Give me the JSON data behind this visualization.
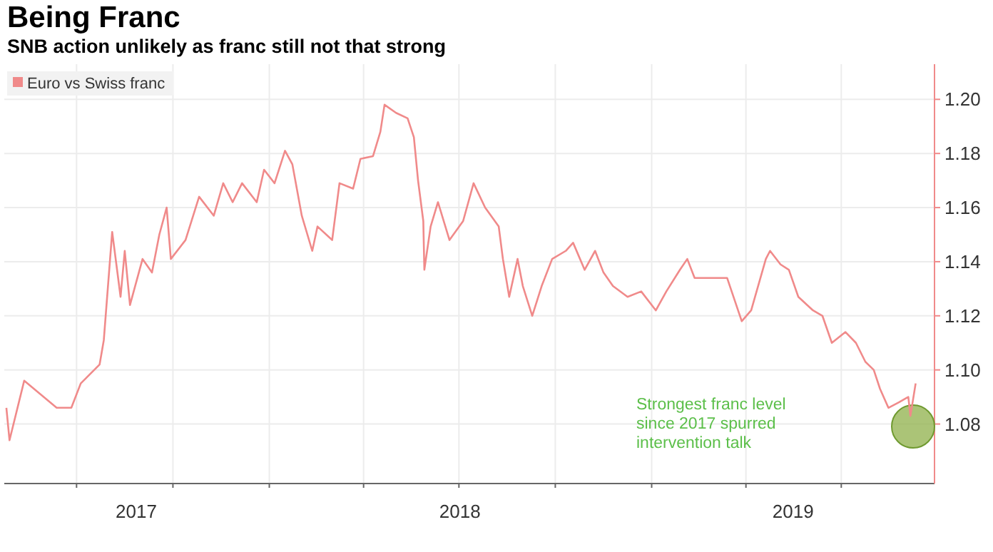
{
  "chart_data": {
    "type": "line",
    "title": "Being Franc",
    "subtitle": "SNB action unlikely as franc still not that strong",
    "x": [
      "2017-04-25",
      "2017-04-28",
      "2017-05-12",
      "2017-06-12",
      "2017-06-26",
      "2017-07-05",
      "2017-07-23",
      "2017-07-27",
      "2017-08-04",
      "2017-08-12",
      "2017-08-16",
      "2017-08-21",
      "2017-09-02",
      "2017-09-11",
      "2017-09-18",
      "2017-09-25",
      "2017-09-29",
      "2017-10-13",
      "2017-10-26",
      "2017-11-09",
      "2017-11-18",
      "2017-11-27",
      "2017-12-06",
      "2017-12-20",
      "2017-12-27",
      "2018-01-06",
      "2018-01-16",
      "2018-01-23",
      "2018-02-01",
      "2018-02-11",
      "2018-02-16",
      "2018-03-02",
      "2018-03-09",
      "2018-03-22",
      "2018-03-29",
      "2018-04-10",
      "2018-04-17",
      "2018-04-21",
      "2018-05-02",
      "2018-05-13",
      "2018-05-19",
      "2018-05-23",
      "2018-05-28",
      "2018-05-29",
      "2018-06-04",
      "2018-06-11",
      "2018-06-22",
      "2018-07-05",
      "2018-07-15",
      "2018-07-26",
      "2018-08-08",
      "2018-08-12",
      "2018-08-18",
      "2018-08-26",
      "2018-08-31",
      "2018-09-09",
      "2018-09-18",
      "2018-09-28",
      "2018-10-11",
      "2018-10-18",
      "2018-10-29",
      "2018-11-08",
      "2018-11-16",
      "2018-11-25",
      "2018-12-09",
      "2018-12-22",
      "2019-01-05",
      "2019-01-15",
      "2019-01-28",
      "2019-02-04",
      "2019-02-11",
      "2019-03-01",
      "2019-03-14",
      "2019-03-28",
      "2019-04-06",
      "2019-04-20",
      "2019-04-24",
      "2019-05-04",
      "2019-05-12",
      "2019-05-21",
      "2019-06-04",
      "2019-06-13",
      "2019-06-22",
      "2019-07-05",
      "2019-07-15",
      "2019-07-24",
      "2019-08-01",
      "2019-08-07",
      "2019-08-15",
      "2019-08-25",
      "2019-09-03",
      "2019-09-05",
      "2019-09-10"
    ],
    "series": [
      {
        "name": "Euro vs Swiss franc",
        "color": "#f08a8a",
        "values": [
          1.086,
          1.074,
          1.096,
          1.086,
          1.086,
          1.095,
          1.102,
          1.111,
          1.151,
          1.127,
          1.144,
          1.124,
          1.141,
          1.136,
          1.15,
          1.16,
          1.141,
          1.148,
          1.164,
          1.157,
          1.169,
          1.162,
          1.169,
          1.162,
          1.174,
          1.169,
          1.181,
          1.176,
          1.157,
          1.144,
          1.153,
          1.148,
          1.169,
          1.167,
          1.178,
          1.179,
          1.188,
          1.198,
          1.195,
          1.193,
          1.186,
          1.17,
          1.155,
          1.137,
          1.153,
          1.162,
          1.148,
          1.155,
          1.169,
          1.16,
          1.153,
          1.141,
          1.127,
          1.141,
          1.131,
          1.12,
          1.131,
          1.141,
          1.144,
          1.147,
          1.137,
          1.144,
          1.136,
          1.131,
          1.127,
          1.129,
          1.122,
          1.129,
          1.137,
          1.141,
          1.134,
          1.134,
          1.134,
          1.118,
          1.122,
          1.141,
          1.144,
          1.139,
          1.137,
          1.127,
          1.122,
          1.12,
          1.11,
          1.114,
          1.11,
          1.103,
          1.1,
          1.093,
          1.086,
          1.088,
          1.09,
          1.083,
          1.095
        ]
      }
    ],
    "xlim": [
      "2017-04-23",
      "2019-09-28"
    ],
    "xticks": [
      {
        "value": "2017-08-27",
        "label": "2017"
      },
      {
        "value": "2018-07-02",
        "label": "2018"
      },
      {
        "value": "2019-05-16",
        "label": "2019"
      },
      {
        "value": "2017-07-01",
        "label": null
      },
      {
        "value": "2017-10-01",
        "label": null
      },
      {
        "value": "2018-01-01",
        "label": null
      },
      {
        "value": "2018-04-01",
        "label": null
      },
      {
        "value": "2018-07-01",
        "label": null
      },
      {
        "value": "2018-10-01",
        "label": null
      },
      {
        "value": "2019-01-01",
        "label": null
      },
      {
        "value": "2019-04-01",
        "label": null
      },
      {
        "value": "2019-07-01",
        "label": null
      }
    ],
    "ylim": [
      1.058,
      1.213
    ],
    "yticks": [
      1.08,
      {
        "value": 1.1,
        "label": "1.10"
      },
      1.12,
      1.14,
      1.16,
      1.18,
      {
        "value": 1.2,
        "label": "1.20"
      }
    ],
    "grid": true,
    "legend": "top left",
    "line_style": "solid",
    "marker": "none",
    "annotations": [
      "Strongest franc level since 2017 spurred intervention talk"
    ]
  }
}
